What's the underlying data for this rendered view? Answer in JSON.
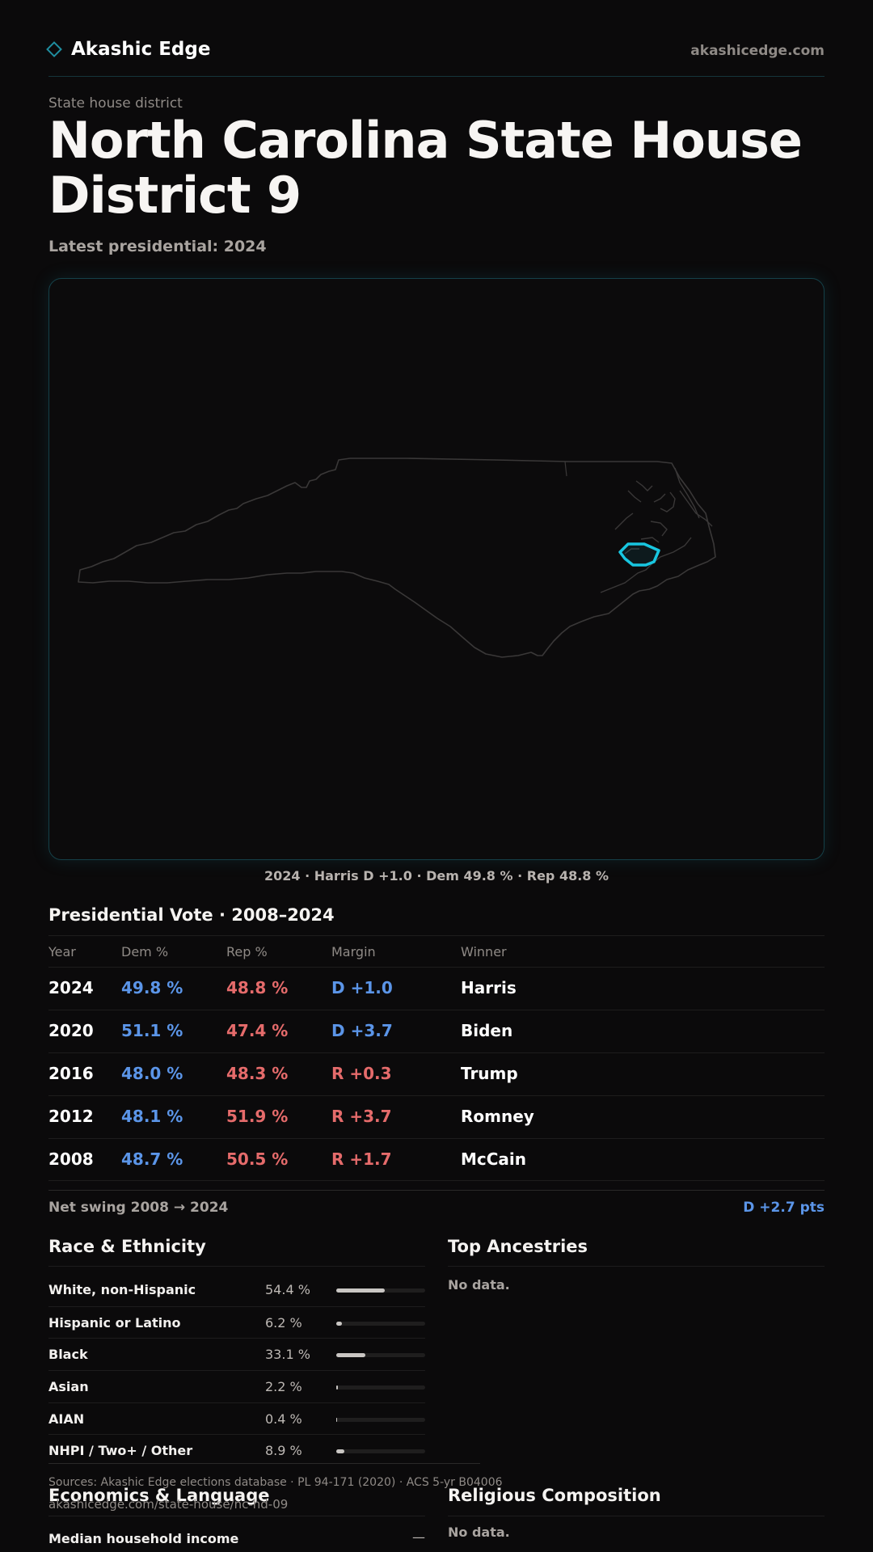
{
  "header": {
    "brand": "Akashic Edge",
    "site_url": "akashicedge.com"
  },
  "page": {
    "kicker": "State house district",
    "title": "North Carolina State House District 9",
    "subtitle": "Latest presidential: 2024"
  },
  "map": {
    "caption": "2024 · Harris D +1.0 · Dem 49.8 % · Rep 48.8 %",
    "state_outline_color": "#3a3838",
    "district_highlight_color": "#18c6e0"
  },
  "presidential": {
    "title": "Presidential Vote · 2008–2024",
    "columns": {
      "year": "Year",
      "dem": "Dem %",
      "rep": "Rep %",
      "margin": "Margin",
      "winner": "Winner"
    },
    "rows": [
      {
        "year": "2024",
        "dem": "49.8 %",
        "rep": "48.8 %",
        "margin": "D +1.0",
        "winner": "Harris",
        "party": "D"
      },
      {
        "year": "2020",
        "dem": "51.1 %",
        "rep": "47.4 %",
        "margin": "D +3.7",
        "winner": "Biden",
        "party": "D"
      },
      {
        "year": "2016",
        "dem": "48.0 %",
        "rep": "48.3 %",
        "margin": "R +0.3",
        "winner": "Trump",
        "party": "R"
      },
      {
        "year": "2012",
        "dem": "48.1 %",
        "rep": "51.9 %",
        "margin": "R +3.7",
        "winner": "Romney",
        "party": "R"
      },
      {
        "year": "2008",
        "dem": "48.7 %",
        "rep": "50.5 %",
        "margin": "R +1.7",
        "winner": "McCain",
        "party": "R"
      }
    ],
    "swing_label": "Net swing 2008 → 2024",
    "swing_value": "D +2.7 pts"
  },
  "race": {
    "title": "Race & Ethnicity",
    "rows": [
      {
        "label": "White, non-Hispanic",
        "pct": "54.4 %",
        "value": 54.4
      },
      {
        "label": "Hispanic or Latino",
        "pct": "6.2 %",
        "value": 6.2
      },
      {
        "label": "Black",
        "pct": "33.1 %",
        "value": 33.1
      },
      {
        "label": "Asian",
        "pct": "2.2 %",
        "value": 2.2
      },
      {
        "label": "AIAN",
        "pct": "0.4 %",
        "value": 0.4
      },
      {
        "label": "NHPI / Two+ / Other",
        "pct": "8.9 %",
        "value": 8.9
      }
    ]
  },
  "ancestries": {
    "title": "Top Ancestries",
    "empty": "No data."
  },
  "economics": {
    "title": "Economics & Language",
    "rows": [
      {
        "label": "Median household income",
        "value": "—"
      }
    ]
  },
  "religion": {
    "title": "Religious Composition",
    "empty": "No data."
  },
  "footer": {
    "sources": "Sources: Akashic Edge elections database · PL 94-171 (2020) · ACS 5-yr B04006",
    "page_url": "akashicedge.com/state-house/nc-hd-09"
  },
  "colors": {
    "accent": "#18c6e0",
    "dem": "#5b95e8",
    "rep": "#e56b6b",
    "background": "#0b0a0b"
  }
}
